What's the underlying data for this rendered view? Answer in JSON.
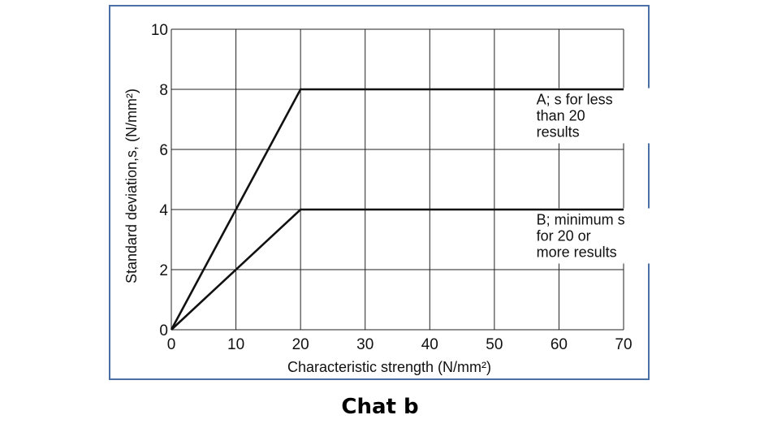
{
  "chart_data": {
    "type": "line",
    "xlabel": "Characteristic strength (N/mm²)",
    "ylabel": "Standard deviation,s, (N/mm²)",
    "xlim": [
      0,
      70
    ],
    "ylim": [
      0,
      10
    ],
    "xticks": [
      0,
      10,
      20,
      30,
      40,
      50,
      60,
      70
    ],
    "yticks": [
      0,
      2,
      4,
      6,
      8,
      10
    ],
    "grid": true,
    "series": [
      {
        "name": "A",
        "points": [
          [
            0,
            0
          ],
          [
            20,
            8
          ],
          [
            70,
            8
          ]
        ],
        "annotation": [
          "A; s for less",
          "than 20",
          "results"
        ]
      },
      {
        "name": "B",
        "points": [
          [
            0,
            0
          ],
          [
            20,
            4
          ],
          [
            70,
            4
          ]
        ],
        "annotation": [
          "B; minimum s",
          "for 20 or",
          "more results"
        ]
      }
    ],
    "line_color": "#111111",
    "grid_color": "#222222"
  },
  "caption": "Chat b",
  "frame_color": "#4a6fa5"
}
